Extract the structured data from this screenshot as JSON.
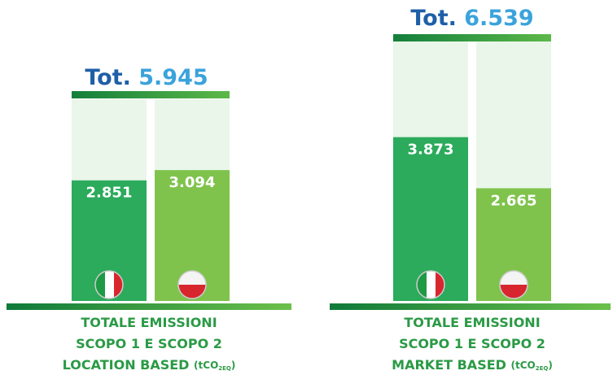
{
  "chart_data": [
    {
      "type": "bar",
      "title": "Tot.",
      "total": "5.945",
      "values": [
        2851,
        3094
      ],
      "value_labels": [
        "2.851",
        "3.094"
      ],
      "colors": [
        "#2bab5b",
        "#7fc34d"
      ],
      "caption": [
        "TOTALE EMISSIONI",
        "SCOPO 1 E SCOPO 2",
        "LOCATION BASED"
      ],
      "unit": [
        "(tCO",
        "2EQ",
        ")"
      ]
    },
    {
      "type": "bar",
      "title": "Tot.",
      "total": "6.539",
      "values": [
        3873,
        2665
      ],
      "value_labels": [
        "3.873",
        "2.665"
      ],
      "colors": [
        "#2bab5b",
        "#7fc34d"
      ],
      "caption": [
        "TOTALE EMISSIONI",
        "SCOPO 1 E SCOPO 2",
        "MARKET BASED"
      ],
      "unit": [
        "(tCO",
        "2EQ",
        ")"
      ]
    }
  ]
}
